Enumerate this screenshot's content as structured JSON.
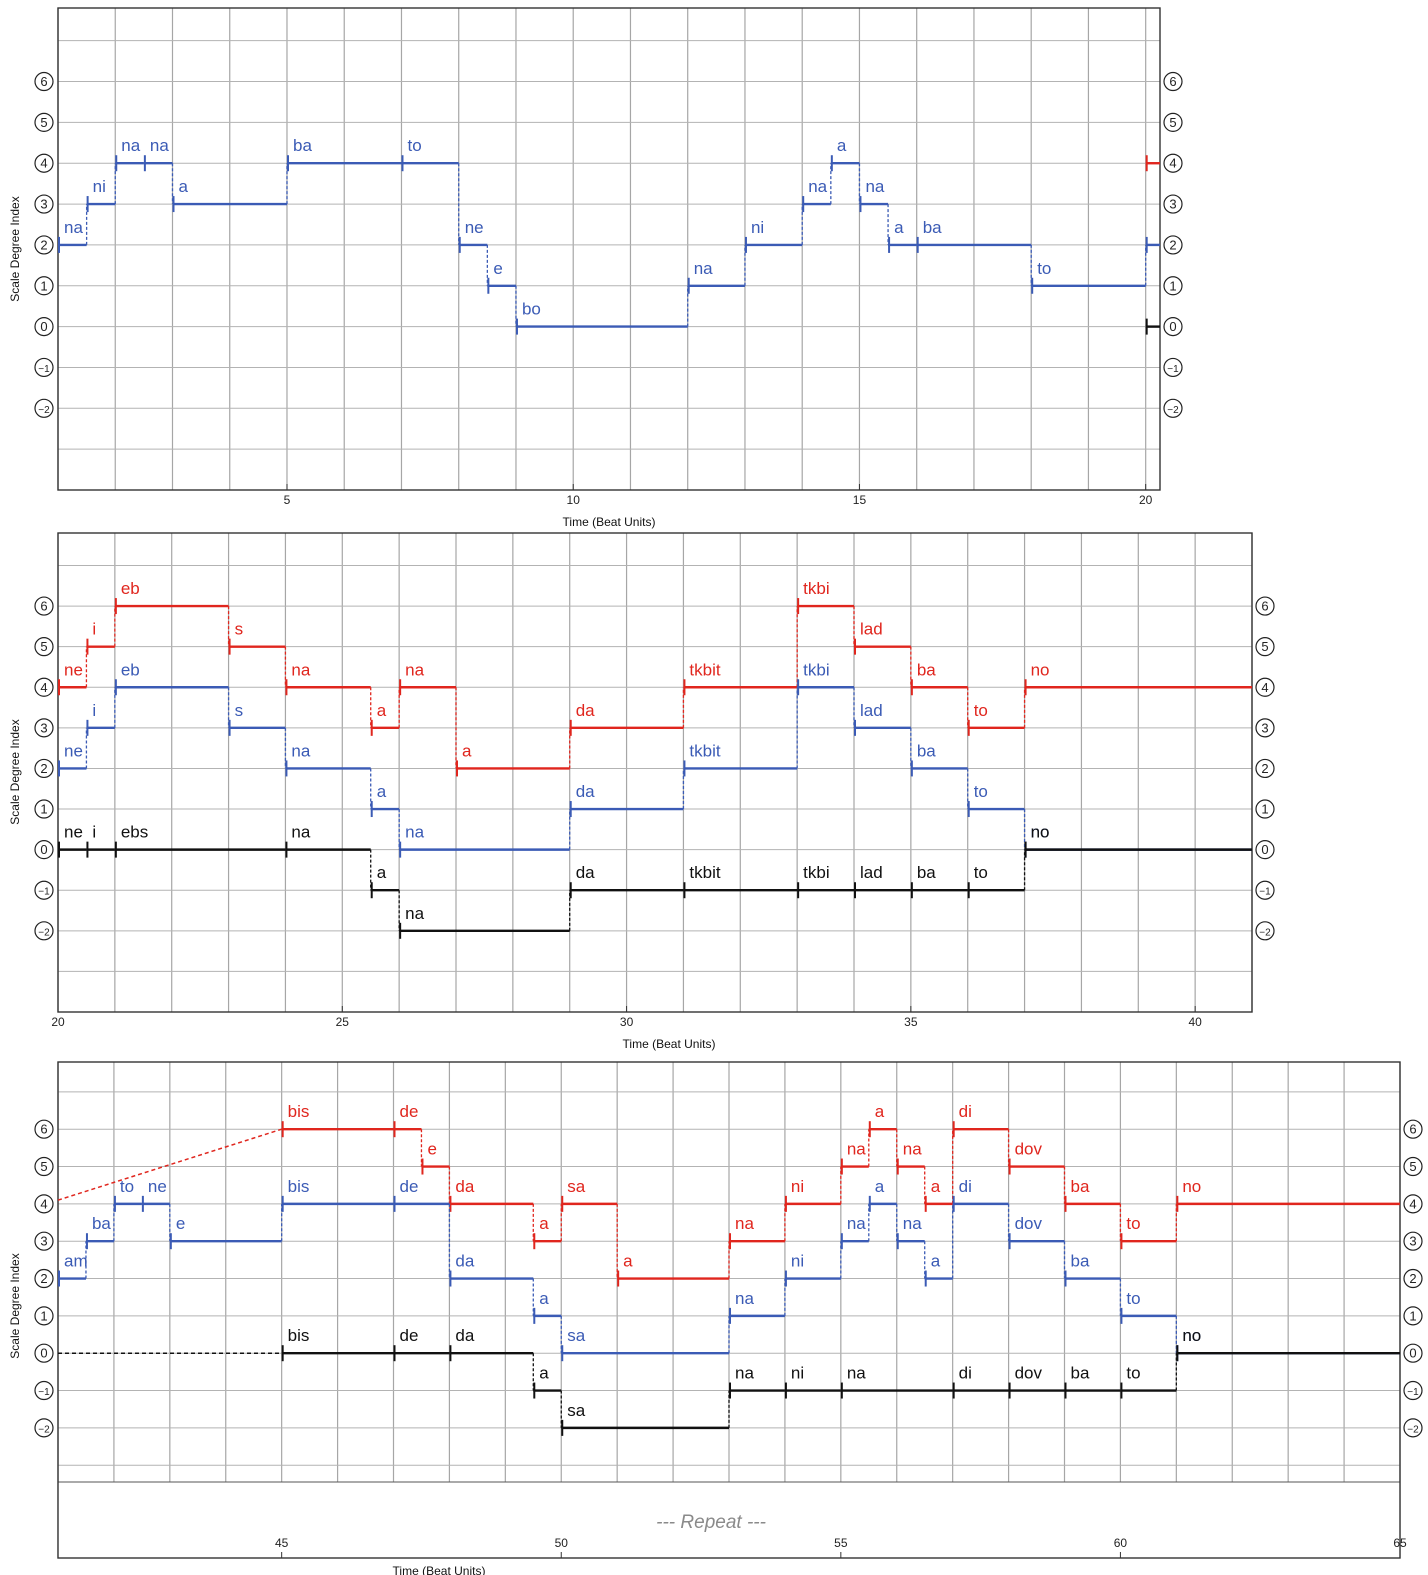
{
  "chart_data": [
    {
      "type": "line",
      "xlabel": "Time (Beat Units)",
      "ylabel": "Scale Degree Index",
      "xlim": [
        1,
        20.25
      ],
      "ylim": [
        -4,
        7.8
      ],
      "x_ticks": [
        5,
        10,
        15,
        20
      ],
      "y_ticks": [
        -2,
        -1,
        0,
        1,
        2,
        3,
        4,
        5,
        6
      ],
      "grid": true,
      "series": [
        {
          "color": "#3b5bb5",
          "notes": [
            {
              "x0": 1,
              "x1": 1.5,
              "y": 2,
              "syl": "na"
            },
            {
              "x0": 1.5,
              "x1": 2,
              "y": 3,
              "syl": "ni"
            },
            {
              "x0": 2,
              "x1": 2.5,
              "y": 4,
              "syl": "na"
            },
            {
              "x0": 2.5,
              "x1": 3,
              "y": 4,
              "syl": "na"
            },
            {
              "x0": 3,
              "x1": 5,
              "y": 3,
              "syl": "a"
            },
            {
              "x0": 5,
              "x1": 7,
              "y": 4,
              "syl": "ba"
            },
            {
              "x0": 7,
              "x1": 8,
              "y": 4,
              "syl": "to"
            },
            {
              "x0": 8,
              "x1": 8.5,
              "y": 2,
              "syl": "ne"
            },
            {
              "x0": 8.5,
              "x1": 9,
              "y": 1,
              "syl": "e"
            },
            {
              "x0": 9,
              "x1": 12,
              "y": 0,
              "syl": "bo"
            },
            {
              "x0": 12,
              "x1": 13,
              "y": 1,
              "syl": "na"
            },
            {
              "x0": 13,
              "x1": 14,
              "y": 2,
              "syl": "ni"
            },
            {
              "x0": 14,
              "x1": 14.5,
              "y": 3,
              "syl": "na"
            },
            {
              "x0": 14.5,
              "x1": 15,
              "y": 4,
              "syl": "a"
            },
            {
              "x0": 15,
              "x1": 15.5,
              "y": 3,
              "syl": "na"
            },
            {
              "x0": 15.5,
              "x1": 16,
              "y": 2,
              "syl": "a"
            },
            {
              "x0": 16,
              "x1": 18,
              "y": 2,
              "syl": "ba"
            },
            {
              "x0": 18,
              "x1": 20,
              "y": 1,
              "syl": "to"
            },
            {
              "x0": 20,
              "x1": 20.25,
              "y": 2,
              "syl": ""
            }
          ]
        },
        {
          "color": "#e0261e",
          "notes": [
            {
              "x0": 20,
              "x1": 20.25,
              "y": 4,
              "syl": ""
            }
          ]
        },
        {
          "color": "#111111",
          "notes": [
            {
              "x0": 20,
              "x1": 20.25,
              "y": 0,
              "syl": ""
            }
          ]
        }
      ]
    },
    {
      "type": "line",
      "xlabel": "Time (Beat Units)",
      "ylabel": "Scale Degree Index",
      "xlim": [
        20,
        41
      ],
      "ylim": [
        -4,
        7.8
      ],
      "x_ticks": [
        20,
        25,
        30,
        35,
        40
      ],
      "y_ticks": [
        -2,
        -1,
        0,
        1,
        2,
        3,
        4,
        5,
        6
      ],
      "grid": true,
      "series": [
        {
          "color": "#e0261e",
          "notes": [
            {
              "x0": 20,
              "x1": 20.5,
              "y": 4,
              "syl": "ne"
            },
            {
              "x0": 20.5,
              "x1": 21,
              "y": 5,
              "syl": "i"
            },
            {
              "x0": 21,
              "x1": 23,
              "y": 6,
              "syl": "eb"
            },
            {
              "x0": 23,
              "x1": 24,
              "y": 5,
              "syl": "s"
            },
            {
              "x0": 24,
              "x1": 25.5,
              "y": 4,
              "syl": "na"
            },
            {
              "x0": 25.5,
              "x1": 26,
              "y": 3,
              "syl": "a"
            },
            {
              "x0": 26,
              "x1": 27,
              "y": 4,
              "syl": "na"
            },
            {
              "x0": 27,
              "x1": 29,
              "y": 2,
              "syl": "a"
            },
            {
              "x0": 29,
              "x1": 31,
              "y": 3,
              "syl": "da"
            },
            {
              "x0": 31,
              "x1": 33,
              "y": 4,
              "syl": "tkbit"
            },
            {
              "x0": 33,
              "x1": 34,
              "y": 6,
              "syl": "tkbi"
            },
            {
              "x0": 34,
              "x1": 35,
              "y": 5,
              "syl": "lad"
            },
            {
              "x0": 35,
              "x1": 36,
              "y": 4,
              "syl": "ba"
            },
            {
              "x0": 36,
              "x1": 37,
              "y": 3,
              "syl": "to"
            },
            {
              "x0": 37,
              "x1": 41,
              "y": 4,
              "syl": "no"
            }
          ]
        },
        {
          "color": "#3b5bb5",
          "notes": [
            {
              "x0": 20,
              "x1": 20.5,
              "y": 2,
              "syl": "ne"
            },
            {
              "x0": 20.5,
              "x1": 21,
              "y": 3,
              "syl": "i"
            },
            {
              "x0": 21,
              "x1": 23,
              "y": 4,
              "syl": "eb"
            },
            {
              "x0": 23,
              "x1": 24,
              "y": 3,
              "syl": "s"
            },
            {
              "x0": 24,
              "x1": 25.5,
              "y": 2,
              "syl": "na"
            },
            {
              "x0": 25.5,
              "x1": 26,
              "y": 1,
              "syl": "a"
            },
            {
              "x0": 26,
              "x1": 29,
              "y": 0,
              "syl": "na"
            },
            {
              "x0": 29,
              "x1": 31,
              "y": 1,
              "syl": "da"
            },
            {
              "x0": 31,
              "x1": 33,
              "y": 2,
              "syl": "tkbit"
            },
            {
              "x0": 33,
              "x1": 34,
              "y": 4,
              "syl": "tkbi"
            },
            {
              "x0": 34,
              "x1": 35,
              "y": 3,
              "syl": "lad"
            },
            {
              "x0": 35,
              "x1": 36,
              "y": 2,
              "syl": "ba"
            },
            {
              "x0": 36,
              "x1": 37,
              "y": 1,
              "syl": "to"
            },
            {
              "x0": 37,
              "x1": 41,
              "y": 0,
              "syl": "no"
            }
          ]
        },
        {
          "color": "#111111",
          "notes": [
            {
              "x0": 20,
              "x1": 20.5,
              "y": 0,
              "syl": "ne"
            },
            {
              "x0": 20.5,
              "x1": 21,
              "y": 0,
              "syl": "i"
            },
            {
              "x0": 21,
              "x1": 24,
              "y": 0,
              "syl": "ebs"
            },
            {
              "x0": 24,
              "x1": 25.5,
              "y": 0,
              "syl": "na"
            },
            {
              "x0": 25.5,
              "x1": 26,
              "y": -1,
              "syl": "a"
            },
            {
              "x0": 26,
              "x1": 29,
              "y": -2,
              "syl": "na"
            },
            {
              "x0": 29,
              "x1": 31,
              "y": -1,
              "syl": "da"
            },
            {
              "x0": 31,
              "x1": 33,
              "y": -1,
              "syl": "tkbit"
            },
            {
              "x0": 33,
              "x1": 34,
              "y": -1,
              "syl": "tkbi"
            },
            {
              "x0": 34,
              "x1": 35,
              "y": -1,
              "syl": "lad"
            },
            {
              "x0": 35,
              "x1": 36,
              "y": -1,
              "syl": "ba"
            },
            {
              "x0": 36,
              "x1": 37,
              "y": -1,
              "syl": "to"
            },
            {
              "x0": 37,
              "x1": 41,
              "y": 0,
              "syl": "no"
            }
          ]
        }
      ]
    },
    {
      "type": "line",
      "xlabel": "Time (Beat Units)",
      "ylabel": "Scale Degree Index",
      "xlim": [
        41,
        65
      ],
      "ylim": [
        -4,
        7.8
      ],
      "x_ticks": [
        45,
        50,
        55,
        60,
        65
      ],
      "y_ticks": [
        -2,
        -1,
        0,
        1,
        2,
        3,
        4,
        5,
        6
      ],
      "grid": true,
      "annotation": "--- Repeat ---",
      "series": [
        {
          "color": "#e0261e",
          "notes": [
            {
              "x0": 45,
              "x1": 47,
              "y": 6,
              "syl": "bis"
            },
            {
              "x0": 47,
              "x1": 47.5,
              "y": 6,
              "syl": "de"
            },
            {
              "x0": 47.5,
              "x1": 48,
              "y": 5,
              "syl": "e"
            },
            {
              "x0": 48,
              "x1": 49.5,
              "y": 4,
              "syl": "da"
            },
            {
              "x0": 49.5,
              "x1": 50,
              "y": 3,
              "syl": "a"
            },
            {
              "x0": 50,
              "x1": 51,
              "y": 4,
              "syl": "sa"
            },
            {
              "x0": 51,
              "x1": 53,
              "y": 2,
              "syl": "a"
            },
            {
              "x0": 53,
              "x1": 54,
              "y": 3,
              "syl": "na"
            },
            {
              "x0": 54,
              "x1": 55,
              "y": 4,
              "syl": "ni"
            },
            {
              "x0": 55,
              "x1": 55.5,
              "y": 5,
              "syl": "na"
            },
            {
              "x0": 55.5,
              "x1": 56,
              "y": 6,
              "syl": "a"
            },
            {
              "x0": 56,
              "x1": 56.5,
              "y": 5,
              "syl": "na"
            },
            {
              "x0": 56.5,
              "x1": 57,
              "y": 4,
              "syl": "a"
            },
            {
              "x0": 57,
              "x1": 58,
              "y": 6,
              "syl": "di"
            },
            {
              "x0": 58,
              "x1": 59,
              "y": 5,
              "syl": "dov"
            },
            {
              "x0": 59,
              "x1": 60,
              "y": 4,
              "syl": "ba"
            },
            {
              "x0": 60,
              "x1": 61,
              "y": 3,
              "syl": "to"
            },
            {
              "x0": 61,
              "x1": 65,
              "y": 4,
              "syl": "no"
            }
          ]
        },
        {
          "color": "#3b5bb5",
          "notes": [
            {
              "x0": 41,
              "x1": 41.5,
              "y": 2,
              "syl": "am"
            },
            {
              "x0": 41.5,
              "x1": 42,
              "y": 3,
              "syl": "ba"
            },
            {
              "x0": 42,
              "x1": 42.5,
              "y": 4,
              "syl": "to"
            },
            {
              "x0": 42.5,
              "x1": 43,
              "y": 4,
              "syl": "ne"
            },
            {
              "x0": 43,
              "x1": 45,
              "y": 3,
              "syl": "e"
            },
            {
              "x0": 45,
              "x1": 47,
              "y": 4,
              "syl": "bis"
            },
            {
              "x0": 47,
              "x1": 48,
              "y": 4,
              "syl": "de"
            },
            {
              "x0": 48,
              "x1": 49.5,
              "y": 2,
              "syl": "da"
            },
            {
              "x0": 49.5,
              "x1": 50,
              "y": 1,
              "syl": "a"
            },
            {
              "x0": 50,
              "x1": 53,
              "y": 0,
              "syl": "sa"
            },
            {
              "x0": 53,
              "x1": 54,
              "y": 1,
              "syl": "na"
            },
            {
              "x0": 54,
              "x1": 55,
              "y": 2,
              "syl": "ni"
            },
            {
              "x0": 55,
              "x1": 55.5,
              "y": 3,
              "syl": "na"
            },
            {
              "x0": 55.5,
              "x1": 56,
              "y": 4,
              "syl": "a"
            },
            {
              "x0": 56,
              "x1": 56.5,
              "y": 3,
              "syl": "na"
            },
            {
              "x0": 56.5,
              "x1": 57,
              "y": 2,
              "syl": "a"
            },
            {
              "x0": 57,
              "x1": 58,
              "y": 4,
              "syl": "di"
            },
            {
              "x0": 58,
              "x1": 59,
              "y": 3,
              "syl": "dov"
            },
            {
              "x0": 59,
              "x1": 60,
              "y": 2,
              "syl": "ba"
            },
            {
              "x0": 60,
              "x1": 61,
              "y": 1,
              "syl": "to"
            },
            {
              "x0": 61,
              "x1": 65,
              "y": 0,
              "syl": "no"
            }
          ]
        },
        {
          "color": "#111111",
          "notes": [
            {
              "x0": 45,
              "x1": 47,
              "y": 0,
              "syl": "bis"
            },
            {
              "x0": 47,
              "x1": 48,
              "y": 0,
              "syl": "de"
            },
            {
              "x0": 48,
              "x1": 49.5,
              "y": 0,
              "syl": "da"
            },
            {
              "x0": 49.5,
              "x1": 50,
              "y": -1,
              "syl": "a"
            },
            {
              "x0": 50,
              "x1": 53,
              "y": -2,
              "syl": "sa"
            },
            {
              "x0": 53,
              "x1": 54,
              "y": -1,
              "syl": "na"
            },
            {
              "x0": 54,
              "x1": 55,
              "y": -1,
              "syl": "ni"
            },
            {
              "x0": 55,
              "x1": 57,
              "y": -1,
              "syl": "na"
            },
            {
              "x0": 57,
              "x1": 58,
              "y": -1,
              "syl": "di"
            },
            {
              "x0": 58,
              "x1": 59,
              "y": -1,
              "syl": "dov"
            },
            {
              "x0": 59,
              "x1": 60,
              "y": -1,
              "syl": "ba"
            },
            {
              "x0": 60,
              "x1": 61,
              "y": -1,
              "syl": "to"
            },
            {
              "x0": 61,
              "x1": 65,
              "y": 0,
              "syl": "no"
            }
          ]
        }
      ],
      "dashed_leadins": [
        {
          "color": "#e0261e",
          "from": [
            41,
            4.1
          ],
          "to": [
            45,
            6
          ]
        },
        {
          "color": "#111111",
          "from": [
            41,
            0
          ],
          "to": [
            45,
            0
          ]
        }
      ]
    }
  ]
}
